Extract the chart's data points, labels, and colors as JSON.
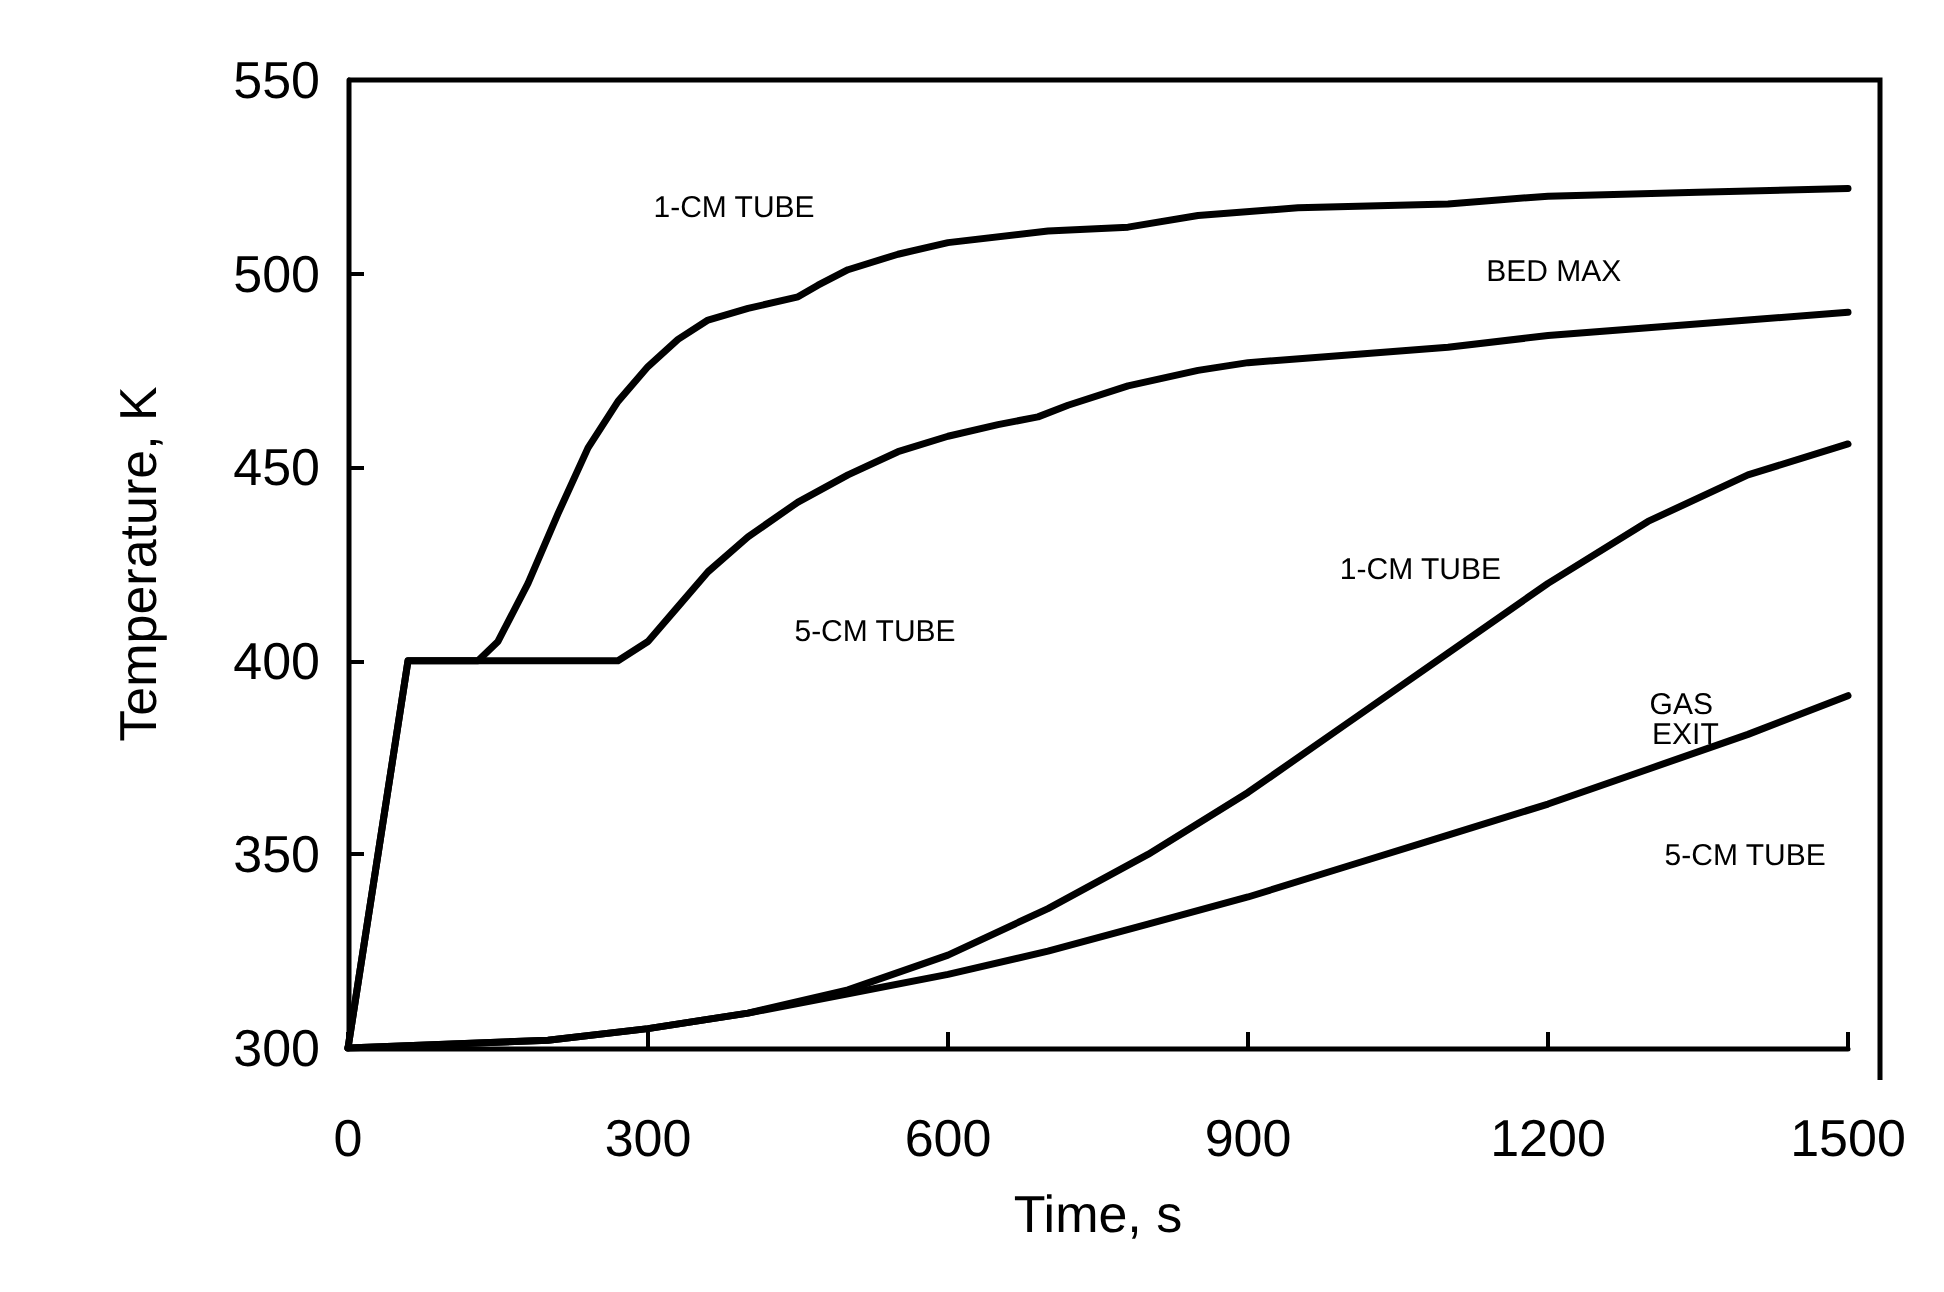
{
  "chart_data": {
    "type": "line",
    "xlabel": "Time, s",
    "ylabel": "Temperature, K",
    "xlim": [
      0,
      1500
    ],
    "ylim": [
      300,
      550
    ],
    "xticks": [
      0,
      300,
      600,
      900,
      1200,
      1500
    ],
    "yticks": [
      300,
      350,
      400,
      450,
      500,
      550
    ],
    "marker": "none",
    "line_style": "solid",
    "series": [
      {
        "color": "#000000",
        "x": [
          0,
          60,
          130,
          150,
          180,
          210,
          240,
          270,
          300,
          330,
          360,
          400,
          450,
          470,
          500,
          550,
          600,
          700,
          780,
          850,
          950,
          1100,
          1200,
          1350,
          1500
        ],
        "values": [
          300,
          400,
          400,
          405,
          420,
          438,
          455,
          467,
          476,
          483,
          488,
          491,
          494,
          497,
          501,
          505,
          508,
          511,
          512,
          515,
          517,
          518,
          520,
          521,
          522
        ]
      },
      {
        "color": "#000000",
        "x": [
          0,
          60,
          270,
          300,
          330,
          360,
          400,
          450,
          500,
          550,
          600,
          650,
          690,
          720,
          780,
          850,
          900,
          1000,
          1100,
          1200,
          1300,
          1400,
          1500
        ],
        "values": [
          300,
          400,
          400,
          405,
          414,
          423,
          432,
          441,
          448,
          454,
          458,
          461,
          463,
          466,
          471,
          475,
          477,
          479,
          481,
          484,
          486,
          488,
          490
        ]
      },
      {
        "color": "#000000",
        "x": [
          0,
          200,
          300,
          400,
          500,
          600,
          700,
          800,
          900,
          1000,
          1100,
          1200,
          1300,
          1400,
          1500
        ],
        "values": [
          300,
          302,
          305,
          309,
          315,
          324,
          336,
          350,
          366,
          384,
          402,
          420,
          436,
          448,
          456
        ]
      },
      {
        "color": "#000000",
        "x": [
          0,
          200,
          300,
          400,
          500,
          600,
          700,
          800,
          900,
          1000,
          1100,
          1200,
          1300,
          1400,
          1500
        ],
        "values": [
          300,
          302,
          305,
          309,
          314,
          319,
          325,
          332,
          339,
          347,
          355,
          363,
          372,
          381,
          391
        ]
      }
    ],
    "annotations": [
      "1-CM TUBE",
      "BED MAX",
      "5-CM TUBE",
      "1-CM TUBE",
      "GAS EXIT",
      "5-CM TUBE"
    ]
  }
}
